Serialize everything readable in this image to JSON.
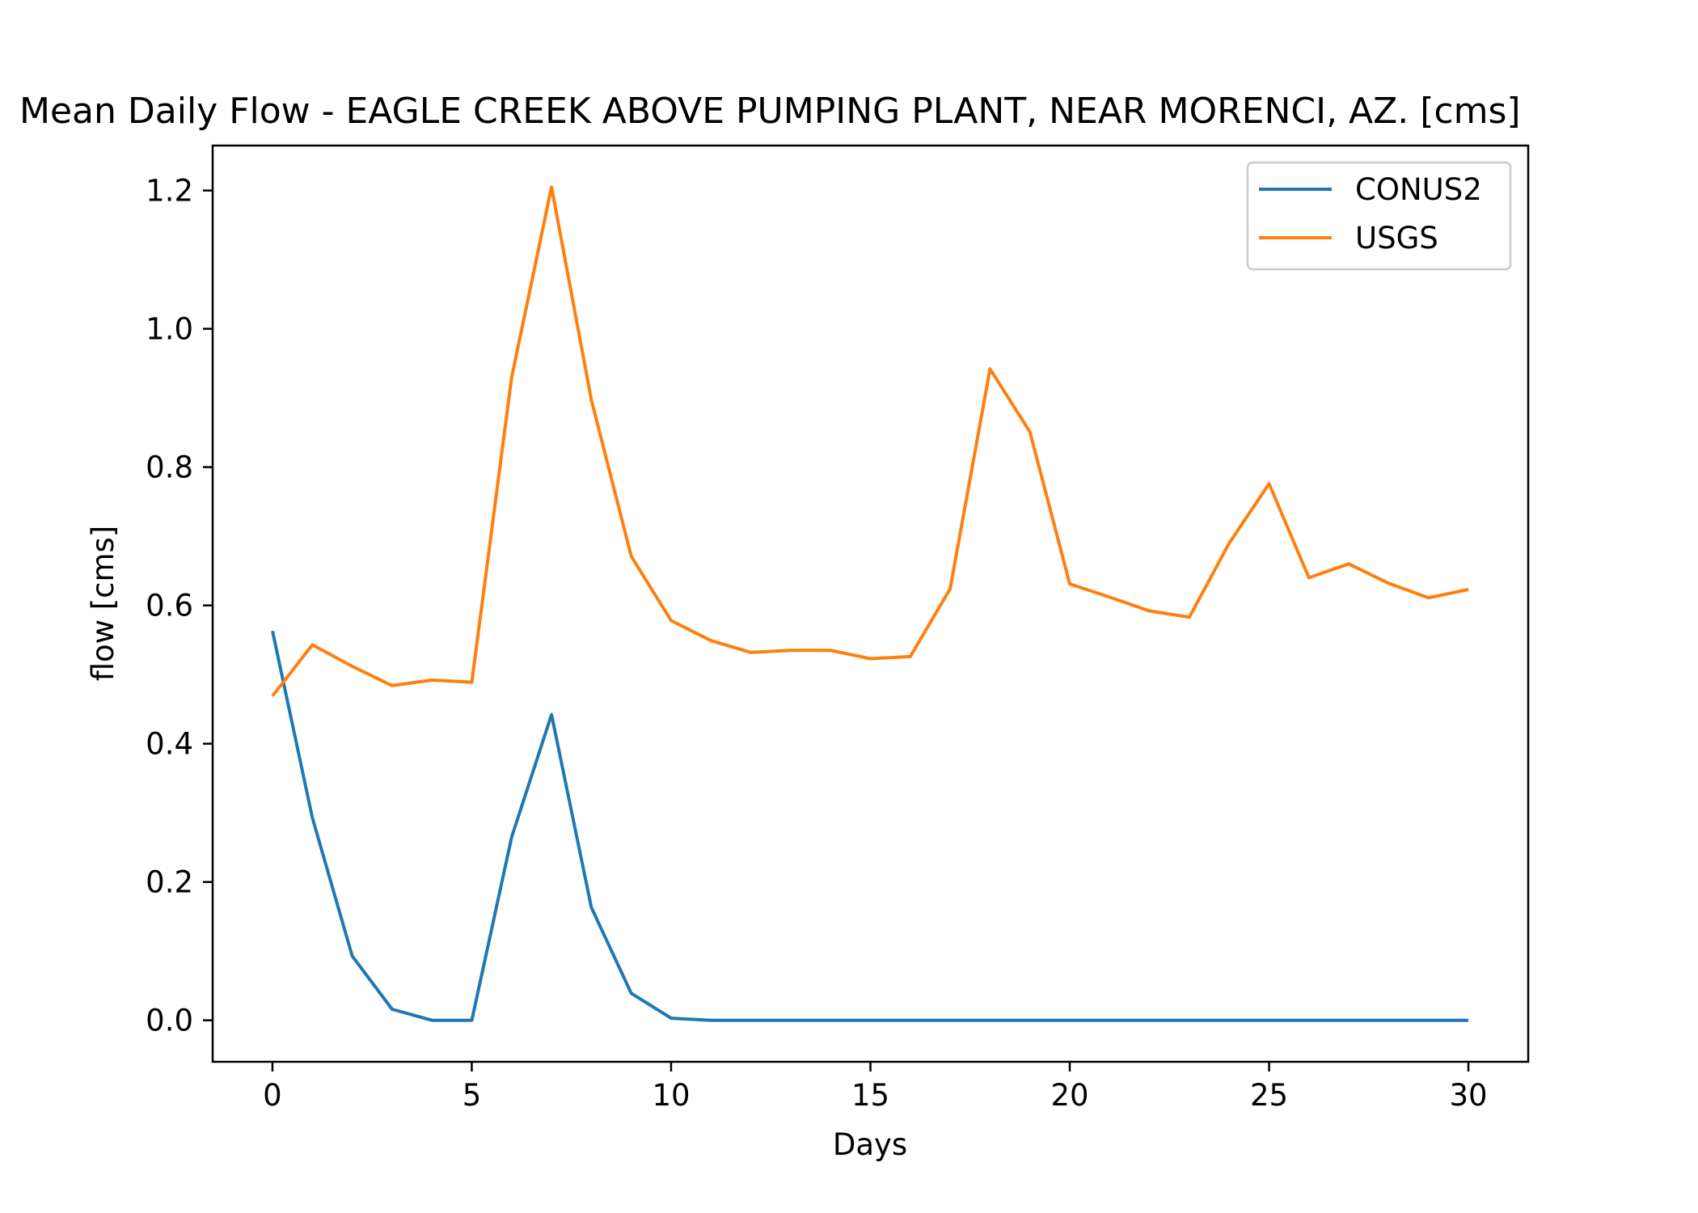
{
  "chart_data": {
    "type": "line",
    "title": "Mean Daily Flow - EAGLE CREEK ABOVE PUMPING PLANT, NEAR MORENCI, AZ. [cms]",
    "xlabel": "Days",
    "ylabel": "flow [cms]",
    "xlim": [
      -1.5,
      31.5
    ],
    "ylim": [
      -0.06,
      1.265
    ],
    "xticks": [
      0,
      5,
      10,
      15,
      20,
      25,
      30
    ],
    "xtick_labels": [
      "0",
      "5",
      "10",
      "15",
      "20",
      "25",
      "30"
    ],
    "yticks": [
      0.0,
      0.2,
      0.4,
      0.6,
      0.8,
      1.0,
      1.2
    ],
    "ytick_labels": [
      "0.0",
      "0.2",
      "0.4",
      "0.6",
      "0.8",
      "1.0",
      "1.2"
    ],
    "grid": false,
    "legend_position": "top-right",
    "x": [
      0,
      1,
      2,
      3,
      4,
      5,
      6,
      7,
      8,
      9,
      10,
      11,
      12,
      13,
      14,
      15,
      16,
      17,
      18,
      19,
      20,
      21,
      22,
      23,
      24,
      25,
      26,
      27,
      28,
      29,
      30
    ],
    "series": [
      {
        "name": "CONUS2",
        "color": "#1f77b4",
        "values": [
          0.563,
          0.293,
          0.093,
          0.016,
          0.0,
          0.0,
          0.265,
          0.442,
          0.163,
          0.039,
          0.003,
          0.0,
          0.0,
          0.0,
          0.0,
          0.0,
          0.0,
          0.0,
          0.0,
          0.0,
          0.0,
          0.0,
          0.0,
          0.0,
          0.0,
          0.0,
          0.0,
          0.0,
          0.0,
          0.0,
          0.0
        ]
      },
      {
        "name": "USGS",
        "color": "#ff7f0e",
        "values": [
          0.469,
          0.543,
          0.512,
          0.484,
          0.492,
          0.489,
          0.93,
          1.205,
          0.897,
          0.671,
          0.578,
          0.549,
          0.532,
          0.535,
          0.535,
          0.523,
          0.526,
          0.624,
          0.942,
          0.851,
          0.631,
          0.612,
          0.592,
          0.583,
          0.69,
          0.776,
          0.64,
          0.66,
          0.632,
          0.611,
          0.623
        ]
      }
    ]
  }
}
